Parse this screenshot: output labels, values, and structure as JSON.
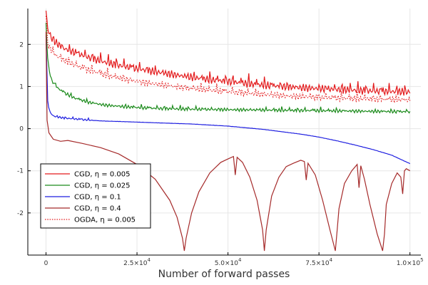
{
  "chart_data": {
    "type": "line",
    "title": "",
    "xlabel": "Number of forward passes",
    "ylabel": "",
    "xlim": [
      -5000,
      103000
    ],
    "ylim": [
      -3.0,
      2.85
    ],
    "grid": true,
    "x_ticks": [
      {
        "value": 0,
        "mantissa": "0",
        "exponent": ""
      },
      {
        "value": 25000,
        "mantissa": "2.5×10",
        "exponent": "4"
      },
      {
        "value": 50000,
        "mantissa": "5.0×10",
        "exponent": "4"
      },
      {
        "value": 75000,
        "mantissa": "7.5×10",
        "exponent": "4"
      },
      {
        "value": 100000,
        "mantissa": "1.0×10",
        "exponent": "5"
      }
    ],
    "y_ticks": [
      {
        "value": 2,
        "label": "2"
      },
      {
        "value": 1,
        "label": "1"
      },
      {
        "value": 0,
        "label": "0"
      },
      {
        "value": -1,
        "label": "-1"
      },
      {
        "value": -2,
        "label": "-2"
      }
    ],
    "legend_position": "bottom-left",
    "series": [
      {
        "name": "CGD,  η = 0.005",
        "color": "#e31a1c",
        "style": "solid",
        "x": [
          0,
          500,
          1500,
          3000,
          5000,
          8000,
          12000,
          16000,
          20000,
          25000,
          30000,
          35000,
          40000,
          45000,
          50000,
          55000,
          60000,
          65000,
          70000,
          75000,
          80000,
          85000,
          90000,
          95000,
          100000
        ],
        "y": [
          2.8,
          2.35,
          2.15,
          2.02,
          1.9,
          1.8,
          1.68,
          1.58,
          1.5,
          1.42,
          1.35,
          1.28,
          1.22,
          1.16,
          1.12,
          1.07,
          1.03,
          1.0,
          0.97,
          0.95,
          0.93,
          0.91,
          0.89,
          0.88,
          0.87
        ]
      },
      {
        "name": "CGD,  η = 0.025",
        "color": "#1a8a1a",
        "style": "solid",
        "x": [
          0,
          500,
          1500,
          3000,
          5000,
          8000,
          12000,
          16000,
          20000,
          25000,
          30000,
          40000,
          50000,
          60000,
          70000,
          80000,
          90000,
          100000
        ],
        "y": [
          2.5,
          1.55,
          1.15,
          0.98,
          0.85,
          0.72,
          0.62,
          0.56,
          0.53,
          0.5,
          0.48,
          0.46,
          0.45,
          0.44,
          0.43,
          0.42,
          0.41,
          0.4
        ]
      },
      {
        "name": "CGD,  η = 0.1",
        "color": "#1f1fe0",
        "style": "solid",
        "x": [
          0,
          500,
          1000,
          2000,
          3000,
          5000,
          8000,
          12000,
          16000,
          20000,
          30000,
          40000,
          50000,
          60000,
          70000,
          75000,
          80000,
          85000,
          90000,
          95000,
          100000
        ],
        "y": [
          2.2,
          0.6,
          0.4,
          0.3,
          0.28,
          0.25,
          0.23,
          0.2,
          0.18,
          0.17,
          0.14,
          0.11,
          0.06,
          -0.02,
          -0.13,
          -0.2,
          -0.29,
          -0.39,
          -0.5,
          -0.63,
          -0.83
        ]
      },
      {
        "name": "CGD,  η = 0.4",
        "color": "#a52a2a",
        "style": "solid",
        "x": [
          0,
          300,
          800,
          2000,
          4000,
          6000,
          10000,
          15000,
          20000,
          25000,
          30000,
          34000,
          36000,
          37500,
          38000,
          38500,
          40000,
          42000,
          45000,
          48000,
          50000,
          51500,
          52000,
          52500,
          54000,
          56000,
          58000,
          59500,
          60000,
          60500,
          62000,
          64000,
          66000,
          68000,
          70000,
          71000,
          71500,
          72000,
          74000,
          76000,
          78000,
          79500,
          80000,
          80500,
          82000,
          84000,
          85500,
          86000,
          86500,
          87500,
          89000,
          91000,
          92500,
          93000,
          93500,
          95000,
          96500,
          97500,
          98000,
          98500,
          99000,
          100000
        ],
        "y": [
          2.3,
          0.2,
          -0.1,
          -0.25,
          -0.3,
          -0.28,
          -0.35,
          -0.45,
          -0.6,
          -0.85,
          -1.2,
          -1.7,
          -2.1,
          -2.6,
          -2.9,
          -2.6,
          -2.0,
          -1.5,
          -1.05,
          -0.8,
          -0.72,
          -0.66,
          -1.1,
          -0.68,
          -0.8,
          -1.15,
          -1.7,
          -2.4,
          -2.9,
          -2.4,
          -1.6,
          -1.15,
          -0.9,
          -0.82,
          -0.75,
          -0.78,
          -1.22,
          -0.82,
          -1.1,
          -1.7,
          -2.4,
          -2.9,
          -2.4,
          -1.9,
          -1.3,
          -1.0,
          -0.85,
          -1.4,
          -0.88,
          -1.2,
          -1.8,
          -2.5,
          -2.9,
          -2.5,
          -1.8,
          -1.3,
          -1.05,
          -1.15,
          -1.55,
          -1.0,
          -0.95,
          -1.0
        ]
      },
      {
        "name": "OGDA,   η = 0.005",
        "color": "#e31a1c",
        "style": "dotted",
        "x": [
          0,
          500,
          1500,
          3000,
          5000,
          8000,
          12000,
          16000,
          20000,
          25000,
          30000,
          35000,
          40000,
          45000,
          50000,
          55000,
          60000,
          65000,
          70000,
          75000,
          80000,
          85000,
          90000,
          95000,
          100000
        ],
        "y": [
          2.7,
          2.0,
          1.85,
          1.72,
          1.62,
          1.5,
          1.38,
          1.28,
          1.2,
          1.12,
          1.06,
          1.0,
          0.95,
          0.91,
          0.87,
          0.84,
          0.81,
          0.78,
          0.76,
          0.74,
          0.72,
          0.71,
          0.7,
          0.69,
          0.68
        ]
      }
    ]
  }
}
